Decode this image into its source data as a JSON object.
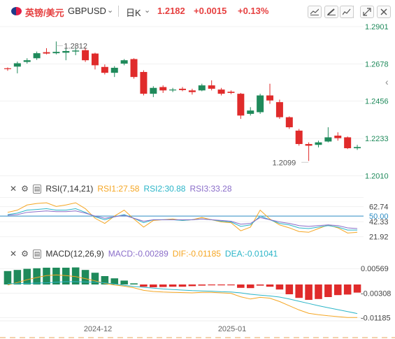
{
  "header": {
    "name": "英镑/美元",
    "symbol": "GBPUSD",
    "caret": "⌄",
    "timeframe": "日K",
    "price": "1.2182",
    "change": "+0.0015",
    "percent": "+0.13%"
  },
  "toolbar": [
    "chart-type-icon",
    "draw-icon",
    "line-tool-icon",
    "expand-icon",
    "close-icon"
  ],
  "colors": {
    "up": "#1f8a5b",
    "down": "#e02b2b",
    "accent": "#e64040"
  },
  "chart_data": [
    {
      "type": "candlestick",
      "title": "",
      "ylim": [
        1.2,
        1.2901
      ],
      "yticks": [
        "1.2901",
        "1.2678",
        "1.2456",
        "1.2233",
        "1.2010"
      ],
      "annotations": [
        {
          "text": "1.2812",
          "value": 1.2812
        },
        {
          "text": "1.2099",
          "value": 1.2099
        }
      ],
      "candles": [
        [
          1.2652,
          1.2647,
          1.2657,
          1.2637
        ],
        [
          1.2662,
          1.2682,
          1.2692,
          1.2622
        ],
        [
          1.269,
          1.27,
          1.2712,
          1.268
        ],
        [
          1.2712,
          1.2742,
          1.2752,
          1.2702
        ],
        [
          1.2748,
          1.274,
          1.2772,
          1.2735
        ],
        [
          1.2742,
          1.275,
          1.2812,
          1.2735
        ],
        [
          1.2745,
          1.2755,
          1.277,
          1.27
        ],
        [
          1.2752,
          1.2758,
          1.2775,
          1.273
        ],
        [
          1.276,
          1.27,
          1.2775,
          1.269
        ],
        [
          1.274,
          1.267,
          1.2745,
          1.2645
        ],
        [
          1.266,
          1.2625,
          1.2675,
          1.2615
        ],
        [
          1.2625,
          1.2655,
          1.2665,
          1.26
        ],
        [
          1.268,
          1.27,
          1.2707,
          1.267
        ],
        [
          1.2707,
          1.26,
          1.2712,
          1.259
        ],
        [
          1.263,
          1.25,
          1.264,
          1.249
        ],
        [
          1.25,
          1.2535,
          1.2545,
          1.248
        ],
        [
          1.254,
          1.252,
          1.255,
          1.2505
        ],
        [
          1.252,
          1.2525,
          1.2535,
          1.251
        ],
        [
          1.253,
          1.2522,
          1.254,
          1.2515
        ],
        [
          1.252,
          1.251,
          1.253,
          1.2495
        ],
        [
          1.252,
          1.255,
          1.256,
          1.2515
        ],
        [
          1.255,
          1.253,
          1.258,
          1.252
        ],
        [
          1.2525,
          1.25,
          1.2535,
          1.249
        ],
        [
          1.2512,
          1.2505,
          1.252,
          1.2498
        ],
        [
          1.25,
          1.237,
          1.2505,
          1.235
        ],
        [
          1.238,
          1.24,
          1.242,
          1.237
        ],
        [
          1.239,
          1.249,
          1.25,
          1.238
        ],
        [
          1.249,
          1.246,
          1.256,
          1.244
        ],
        [
          1.245,
          1.236,
          1.2465,
          1.235
        ],
        [
          1.236,
          1.23,
          1.2365,
          1.229
        ],
        [
          1.228,
          1.22,
          1.229,
          1.219
        ],
        [
          1.22,
          1.219,
          1.221,
          1.2099
        ],
        [
          1.2195,
          1.221,
          1.222,
          1.218
        ],
        [
          1.2215,
          1.224,
          1.23,
          1.221
        ],
        [
          1.225,
          1.2235,
          1.227,
          1.222
        ],
        [
          1.224,
          1.2175,
          1.2245,
          1.217
        ],
        [
          1.2175,
          1.2182,
          1.2195,
          1.2165
        ]
      ]
    },
    {
      "type": "line",
      "label": "RSI(7,14,21)",
      "legend": [
        "RSI1:27.58",
        "RSI2:30.88",
        "RSI3:33.28"
      ],
      "yticks": [
        "62.74",
        "50.00",
        "42.33",
        "21.92"
      ],
      "ylim": [
        15,
        70
      ],
      "series": [
        {
          "name": "RSI1",
          "color": "#f5a623",
          "values": [
            55,
            58,
            65,
            67,
            68,
            63,
            65,
            68,
            60,
            47,
            40,
            50,
            58,
            46,
            35,
            44,
            45,
            46,
            44,
            45,
            48,
            45,
            42,
            41,
            30,
            35,
            58,
            46,
            38,
            34,
            29,
            28,
            33,
            38,
            34,
            27,
            28
          ]
        },
        {
          "name": "RSI2",
          "color": "#2bb5c8",
          "values": [
            52,
            54,
            58,
            59,
            60,
            58,
            58,
            60,
            55,
            49,
            45,
            49,
            52,
            47,
            41,
            45,
            45,
            45,
            44,
            45,
            46,
            45,
            43,
            42,
            36,
            38,
            50,
            45,
            40,
            38,
            34,
            33,
            35,
            37,
            35,
            31,
            31
          ]
        },
        {
          "name": "RSI3",
          "color": "#8a6dc9",
          "values": [
            51,
            52,
            55,
            56,
            57,
            56,
            56,
            57,
            54,
            50,
            47,
            49,
            51,
            47,
            43,
            45,
            45,
            45,
            45,
            45,
            46,
            45,
            44,
            43,
            39,
            40,
            48,
            45,
            42,
            40,
            37,
            36,
            37,
            38,
            37,
            34,
            33
          ]
        }
      ]
    },
    {
      "type": "bar",
      "label": "MACD(12,26,9)",
      "legend": [
        "MACD:-0.00289",
        "DIF:-0.01185",
        "DEA:-0.01041"
      ],
      "yticks": [
        "0.00569",
        "-0.00308",
        "-0.01185"
      ],
      "ylim": [
        -0.0125,
        0.0065
      ],
      "x_labels": [
        "2024-12",
        "2025-01"
      ],
      "values": [
        0.0048,
        0.0052,
        0.0056,
        0.0058,
        0.006,
        0.006,
        0.006,
        0.0061,
        0.0052,
        0.0042,
        0.003,
        0.0022,
        0.0014,
        0.0004,
        -0.0008,
        -0.001,
        -0.0009,
        -0.0008,
        -0.0008,
        -0.0006,
        -0.0004,
        -0.0003,
        -0.0003,
        -0.0003,
        -0.0012,
        -0.0013,
        -0.0004,
        -0.0008,
        -0.0018,
        -0.0035,
        -0.0048,
        -0.0055,
        -0.0052,
        -0.0045,
        -0.0038,
        -0.0036,
        -0.0029
      ],
      "series": [
        {
          "name": "DIF",
          "color": "#f5a623",
          "values": [
            -0.0002,
            0.0007,
            0.0017,
            0.0025,
            0.0032,
            0.0034,
            0.0032,
            0.0028,
            0.0021,
            0.0013,
            0.0004,
            -0.0002,
            -0.0006,
            -0.0012,
            -0.0021,
            -0.0025,
            -0.0027,
            -0.0028,
            -0.0029,
            -0.003,
            -0.0028,
            -0.0028,
            -0.003,
            -0.0032,
            -0.0044,
            -0.0052,
            -0.0046,
            -0.0049,
            -0.0061,
            -0.0076,
            -0.0091,
            -0.0103,
            -0.0108,
            -0.0112,
            -0.0115,
            -0.0118,
            -0.0118
          ]
        },
        {
          "name": "DEA",
          "color": "#2bb5c8",
          "values": [
            0.0003,
            0.0003,
            0.0004,
            0.0005,
            0.0006,
            0.0008,
            0.001,
            0.001,
            0.0009,
            0.0008,
            0.0006,
            0.0002,
            -0.0003,
            -0.0007,
            -0.001,
            -0.0013,
            -0.0016,
            -0.0018,
            -0.002,
            -0.0022,
            -0.0023,
            -0.0024,
            -0.0026,
            -0.0027,
            -0.003,
            -0.0035,
            -0.0038,
            -0.0041,
            -0.0045,
            -0.0052,
            -0.006,
            -0.0068,
            -0.0076,
            -0.0083,
            -0.009,
            -0.0097,
            -0.0104
          ]
        }
      ]
    }
  ]
}
